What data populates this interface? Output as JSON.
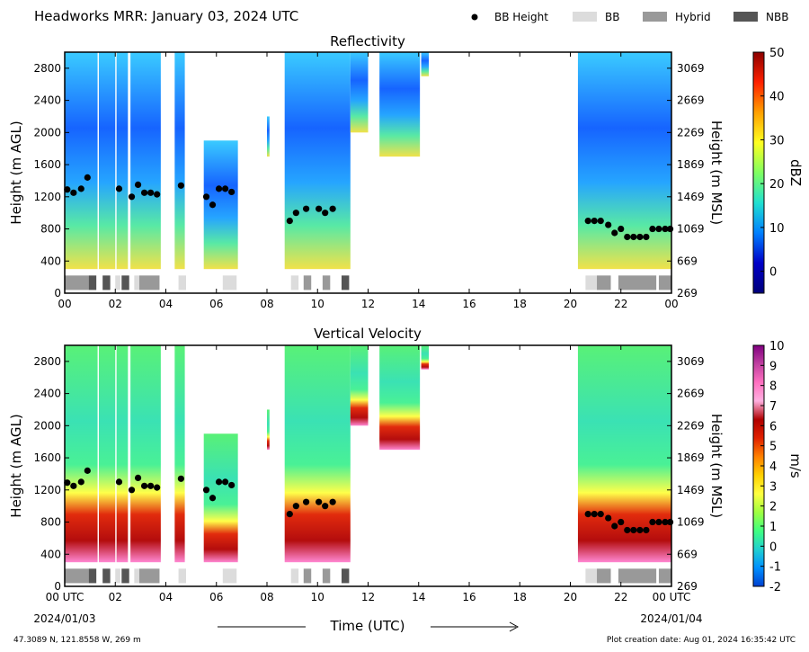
{
  "header": {
    "title": "Headworks MRR:  January 03, 2024 UTC",
    "legend": [
      {
        "label": "BB Height",
        "kind": "dot",
        "color": "#000000"
      },
      {
        "label": "BB",
        "kind": "box",
        "color": "#dcdcdc"
      },
      {
        "label": "Hybrid",
        "kind": "box",
        "color": "#999999"
      },
      {
        "label": "NBB",
        "kind": "box",
        "color": "#555555"
      }
    ]
  },
  "footer": {
    "location": "47.3089 N, 121.8558 W, 269 m",
    "creation": "Plot creation date: Aug 01, 2024 16:35:42 UTC",
    "time_label": "Time (UTC)",
    "date_start": "2024/01/03",
    "date_end": "2024/01/04"
  },
  "chart_data": [
    {
      "type": "heatmap",
      "title": "Reflectivity",
      "ylabel": "Height (m AGL)",
      "y2label": "Height (m MSL)",
      "colorbar_label": "dBZ",
      "colorbar_ticks": [
        "50",
        "40",
        "30",
        "20",
        "10",
        "0"
      ],
      "colorbar_colors": [
        "#8b0000",
        "#ff2000",
        "#ffa000",
        "#ffff20",
        "#80ff60",
        "#20e0d0",
        "#0080ff",
        "#0000c8",
        "#00007a"
      ],
      "colorbar_range": [
        -5,
        50
      ],
      "xlim": [
        0,
        24
      ],
      "ylim": [
        0,
        3000
      ],
      "x_ticks": [
        "00",
        "02",
        "04",
        "06",
        "08",
        "10",
        "12",
        "14",
        "16",
        "18",
        "20",
        "22",
        "00"
      ],
      "y_ticks": [
        "0",
        "400",
        "800",
        "1200",
        "1600",
        "2000",
        "2400",
        "2800"
      ],
      "y2_ticks": [
        "269",
        "669",
        "1069",
        "1469",
        "1869",
        "2269",
        "2669",
        "3069"
      ]
    },
    {
      "type": "heatmap",
      "title": "Vertical Velocity",
      "ylabel": "Height (m AGL)",
      "y2label": "Height (m MSL)",
      "colorbar_label": "m/s",
      "colorbar_ticks": [
        "10",
        "9",
        "8",
        "7",
        "6",
        "5",
        "4",
        "3",
        "2",
        "1",
        "0",
        "-1",
        "-2"
      ],
      "colorbar_colors": [
        "#800080",
        "#c040a0",
        "#ff70c0",
        "#ffb0e0",
        "#b00000",
        "#e02000",
        "#ff8000",
        "#ffd000",
        "#ffff40",
        "#a0ff40",
        "#40ff80",
        "#20d0d0",
        "#0090ff",
        "#0040d0"
      ],
      "colorbar_range": [
        -2,
        10
      ],
      "xlim": [
        0,
        24
      ],
      "ylim": [
        0,
        3000
      ],
      "x_ticks": [
        "00 UTC",
        "02",
        "04",
        "06",
        "08",
        "10",
        "12",
        "14",
        "16",
        "18",
        "20",
        "22",
        "00 UTC"
      ],
      "y_ticks": [
        "0",
        "400",
        "800",
        "1200",
        "1600",
        "2000",
        "2400",
        "2800"
      ],
      "y2_ticks": [
        "269",
        "669",
        "1069",
        "1469",
        "1869",
        "2269",
        "2669",
        "3069"
      ]
    }
  ],
  "bb_height": {
    "time": [
      0.1,
      0.35,
      0.65,
      0.9,
      2.15,
      2.65,
      2.9,
      3.15,
      3.4,
      3.65,
      4.6,
      5.6,
      5.85,
      6.1,
      6.35,
      6.6,
      8.9,
      9.15,
      9.55,
      10.05,
      10.3,
      10.6,
      20.7,
      20.95,
      21.2,
      21.5,
      21.75,
      22.0,
      22.25,
      22.5,
      22.75,
      23.0,
      23.25,
      23.5,
      23.75,
      23.95
    ],
    "height": [
      1290,
      1250,
      1300,
      1440,
      1300,
      1200,
      1350,
      1250,
      1250,
      1230,
      1340,
      1200,
      1100,
      1300,
      1300,
      1260,
      900,
      1000,
      1050,
      1050,
      1000,
      1050,
      900,
      900,
      900,
      850,
      750,
      800,
      700,
      700,
      700,
      700,
      800,
      800,
      800,
      800
    ]
  },
  "bb_type_segments": [
    {
      "start": 0.0,
      "end": 0.95,
      "type": "Hybrid"
    },
    {
      "start": 0.95,
      "end": 1.25,
      "type": "NBB"
    },
    {
      "start": 1.5,
      "end": 1.8,
      "type": "NBB"
    },
    {
      "start": 2.0,
      "end": 2.2,
      "type": "BB"
    },
    {
      "start": 2.25,
      "end": 2.55,
      "type": "NBB"
    },
    {
      "start": 2.75,
      "end": 2.95,
      "type": "BB"
    },
    {
      "start": 2.95,
      "end": 3.75,
      "type": "Hybrid"
    },
    {
      "start": 4.5,
      "end": 4.8,
      "type": "BB"
    },
    {
      "start": 6.25,
      "end": 6.8,
      "type": "BB"
    },
    {
      "start": 8.95,
      "end": 9.25,
      "type": "BB"
    },
    {
      "start": 9.45,
      "end": 9.75,
      "type": "Hybrid"
    },
    {
      "start": 10.2,
      "end": 10.5,
      "type": "Hybrid"
    },
    {
      "start": 10.95,
      "end": 11.25,
      "type": "NBB"
    },
    {
      "start": 20.6,
      "end": 21.05,
      "type": "BB"
    },
    {
      "start": 21.05,
      "end": 21.6,
      "type": "Hybrid"
    },
    {
      "start": 21.9,
      "end": 23.4,
      "type": "Hybrid"
    },
    {
      "start": 23.5,
      "end": 24.0,
      "type": "Hybrid"
    }
  ],
  "echo_periods": [
    {
      "start": 0.0,
      "end": 1.3,
      "top": 3000,
      "bottom": 300
    },
    {
      "start": 1.35,
      "end": 2.0,
      "top": 3000,
      "bottom": 300
    },
    {
      "start": 2.05,
      "end": 2.5,
      "top": 3000,
      "bottom": 300
    },
    {
      "start": 2.6,
      "end": 3.8,
      "top": 3000,
      "bottom": 300
    },
    {
      "start": 4.35,
      "end": 4.75,
      "top": 3000,
      "bottom": 300
    },
    {
      "start": 5.5,
      "end": 6.85,
      "top": 1900,
      "bottom": 300
    },
    {
      "start": 8.0,
      "end": 8.1,
      "top": 2200,
      "bottom": 1700
    },
    {
      "start": 8.7,
      "end": 11.3,
      "top": 3000,
      "bottom": 300
    },
    {
      "start": 11.3,
      "end": 12.0,
      "top": 3000,
      "bottom": 2000
    },
    {
      "start": 12.45,
      "end": 14.05,
      "top": 3000,
      "bottom": 1700
    },
    {
      "start": 14.1,
      "end": 14.4,
      "top": 3000,
      "bottom": 2700
    },
    {
      "start": 20.3,
      "end": 24.0,
      "top": 3000,
      "bottom": 300
    }
  ]
}
